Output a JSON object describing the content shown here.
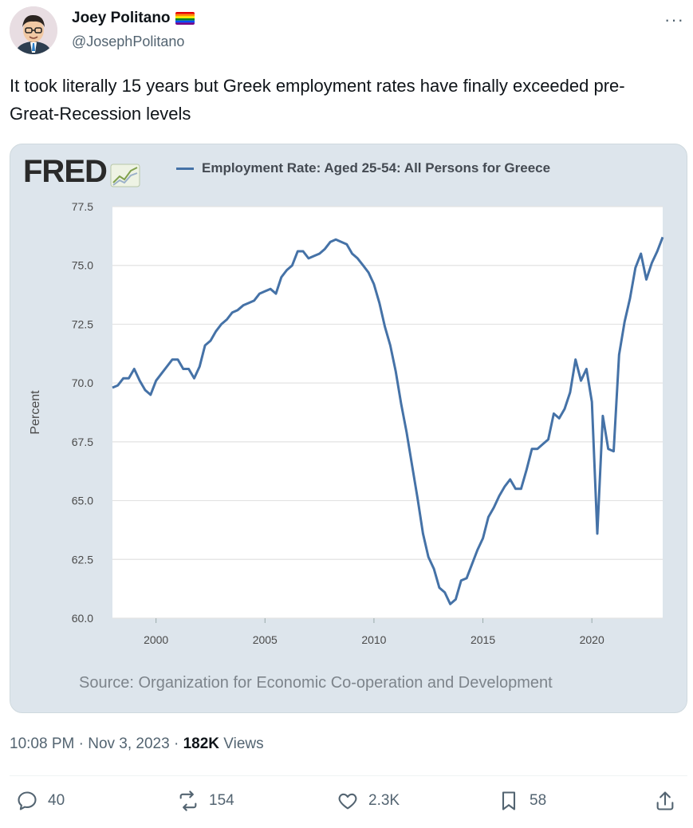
{
  "author": {
    "display_name": "Joey Politano",
    "handle": "@JosephPolitano",
    "flag_icon": "rainbow-flag-icon"
  },
  "tweet": {
    "text": "It took literally 15 years but Greek employment rates have finally exceeded pre-Great-Recession levels"
  },
  "fred": {
    "logo_text": "FRED",
    "legend": "Employment Rate: Aged 25-54: All Persons for Greece",
    "source": "Source: Organization for Economic Co-operation and Development"
  },
  "meta": {
    "time": "10:08 PM",
    "date": "Nov 3, 2023",
    "views_count": "182K",
    "views_label": "Views"
  },
  "actions": {
    "replies": "40",
    "reposts": "154",
    "likes": "2.3K",
    "bookmarks": "58"
  },
  "colors": {
    "series": "#4572a7",
    "card_bg": "#dde5ec"
  },
  "chart_data": {
    "type": "line",
    "ylabel": "Percent",
    "ylim": [
      60,
      77.5
    ],
    "xlim": [
      1998.0,
      2023.25
    ],
    "y_ticks": [
      "60.0",
      "62.5",
      "65.0",
      "67.5",
      "70.0",
      "72.5",
      "75.0",
      "77.5"
    ],
    "x_ticks": [
      "2000",
      "2005",
      "2010",
      "2015",
      "2020"
    ],
    "legend_position": "top",
    "grid": true,
    "series": [
      {
        "name": "Employment Rate: Aged 25-54: All Persons for Greece",
        "x": [
          1998.0,
          1998.25,
          1998.5,
          1998.75,
          1999.0,
          1999.25,
          1999.5,
          1999.75,
          2000.0,
          2000.25,
          2000.5,
          2000.75,
          2001.0,
          2001.25,
          2001.5,
          2001.75,
          2002.0,
          2002.25,
          2002.5,
          2002.75,
          2003.0,
          2003.25,
          2003.5,
          2003.75,
          2004.0,
          2004.25,
          2004.5,
          2004.75,
          2005.0,
          2005.25,
          2005.5,
          2005.75,
          2006.0,
          2006.25,
          2006.5,
          2006.75,
          2007.0,
          2007.25,
          2007.5,
          2007.75,
          2008.0,
          2008.25,
          2008.5,
          2008.75,
          2009.0,
          2009.25,
          2009.5,
          2009.75,
          2010.0,
          2010.25,
          2010.5,
          2010.75,
          2011.0,
          2011.25,
          2011.5,
          2011.75,
          2012.0,
          2012.25,
          2012.5,
          2012.75,
          2013.0,
          2013.25,
          2013.5,
          2013.75,
          2014.0,
          2014.25,
          2014.5,
          2014.75,
          2015.0,
          2015.25,
          2015.5,
          2015.75,
          2016.0,
          2016.25,
          2016.5,
          2016.75,
          2017.0,
          2017.25,
          2017.5,
          2017.75,
          2018.0,
          2018.25,
          2018.5,
          2018.75,
          2019.0,
          2019.25,
          2019.5,
          2019.75,
          2020.0,
          2020.25,
          2020.5,
          2020.75,
          2021.0,
          2021.25,
          2021.5,
          2021.75,
          2022.0,
          2022.25,
          2022.5,
          2022.75,
          2023.0,
          2023.25
        ],
        "values": [
          69.8,
          69.9,
          70.2,
          70.2,
          70.6,
          70.1,
          69.7,
          69.5,
          70.1,
          70.4,
          70.7,
          71.0,
          71.0,
          70.6,
          70.6,
          70.2,
          70.7,
          71.6,
          71.8,
          72.2,
          72.5,
          72.7,
          73.0,
          73.1,
          73.3,
          73.4,
          73.5,
          73.8,
          73.9,
          74.0,
          73.8,
          74.5,
          74.8,
          75.0,
          75.6,
          75.6,
          75.3,
          75.4,
          75.5,
          75.7,
          76.0,
          76.1,
          76.0,
          75.9,
          75.5,
          75.3,
          75.0,
          74.7,
          74.2,
          73.4,
          72.4,
          71.6,
          70.5,
          69.1,
          67.9,
          66.5,
          65.1,
          63.6,
          62.6,
          62.1,
          61.3,
          61.1,
          60.6,
          60.8,
          61.6,
          61.7,
          62.3,
          62.9,
          63.4,
          64.3,
          64.7,
          65.2,
          65.6,
          65.9,
          65.5,
          65.5,
          66.3,
          67.2,
          67.2,
          67.4,
          67.6,
          68.7,
          68.5,
          68.9,
          69.6,
          71.0,
          70.1,
          70.6,
          69.2,
          63.6,
          68.6,
          67.2,
          67.1,
          71.2,
          72.6,
          73.6,
          74.9,
          75.5,
          74.4,
          75.1,
          75.6,
          76.2
        ]
      }
    ]
  }
}
